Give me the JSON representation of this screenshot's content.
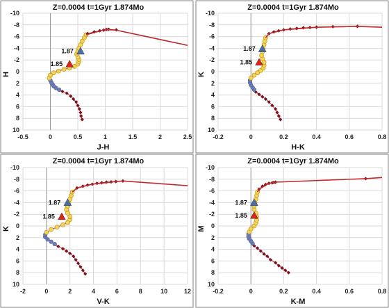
{
  "colors": {
    "isochrone_line": "#c0282a",
    "isochrone_marker": "#7a1220",
    "yellow_marker_fill": "#f3d55a",
    "yellow_marker_edge": "#c89a1c",
    "blue_marker": "#6f7fb8",
    "triangle_blue": "#4a6ea8",
    "triangle_red": "#d7261e",
    "grid": "#d9d9d9",
    "frame": "#7f7f7f"
  },
  "chart_data": [
    {
      "type": "line",
      "title": "Z=0.0004  t=1Gyr  1.874Mo",
      "xlabel": "J-H",
      "ylabel": "H",
      "xlim": [
        -0.5,
        2.5
      ],
      "ylim": [
        10,
        -10
      ],
      "x_ticks": [
        "-0.5",
        "0",
        "0.5",
        "1",
        "1.5",
        "2",
        "2.5"
      ],
      "y_ticks": [
        "-10",
        "-8",
        "-6",
        "-4",
        "-2",
        "0",
        "2",
        "4",
        "6",
        "8",
        "10"
      ],
      "grid": true,
      "series": [
        {
          "marker": "dark-red-diamond",
          "points": [
            [
              0.58,
              8.2
            ],
            [
              0.56,
              7.6
            ],
            [
              0.55,
              7.0
            ],
            [
              0.53,
              6.4
            ],
            [
              0.5,
              5.8
            ],
            [
              0.47,
              5.2
            ],
            [
              0.42,
              4.7
            ],
            [
              0.37,
              4.2
            ],
            [
              0.3,
              3.7
            ],
            [
              0.22,
              3.4
            ]
          ]
        },
        {
          "marker": "blue-circle",
          "points": [
            [
              0.16,
              3.1
            ],
            [
              0.1,
              2.8
            ],
            [
              0.06,
              2.5
            ],
            [
              0.04,
              2.2
            ],
            [
              0.02,
              1.9
            ],
            [
              0.0,
              1.5
            ]
          ]
        },
        {
          "marker": "yellow-circle",
          "points": [
            [
              -0.02,
              1.1
            ],
            [
              0.0,
              0.6
            ],
            [
              0.06,
              0.2
            ],
            [
              0.15,
              -0.1
            ],
            [
              0.25,
              -0.4
            ],
            [
              0.35,
              -0.6
            ],
            [
              0.44,
              -0.9
            ],
            [
              0.5,
              -1.3
            ],
            [
              0.52,
              -1.7
            ],
            [
              0.52,
              -2.1
            ],
            [
              0.5,
              -2.5
            ],
            [
              0.48,
              -3.0
            ],
            [
              0.5,
              -3.5
            ],
            [
              0.52,
              -4.0
            ],
            [
              0.55,
              -4.6
            ],
            [
              0.58,
              -5.2
            ],
            [
              0.62,
              -5.8
            ],
            [
              0.65,
              -6.3
            ]
          ]
        },
        {
          "marker": "dark-red-diamond",
          "points": [
            [
              0.68,
              -6.5
            ],
            [
              0.8,
              -6.8
            ],
            [
              0.9,
              -7.0
            ],
            [
              0.97,
              -7.1
            ],
            [
              1.02,
              -7.2
            ],
            [
              1.06,
              -7.25
            ],
            [
              1.2,
              -7.15
            ]
          ]
        },
        {
          "marker": "none",
          "points": [
            [
              0.65,
              -6.3
            ],
            [
              1.0,
              -7.2
            ],
            [
              1.2,
              -7.1
            ],
            [
              1.6,
              -6.3
            ],
            [
              2.0,
              -5.5
            ],
            [
              2.5,
              -4.5
            ]
          ]
        }
      ],
      "markers": [
        {
          "label": "1.87",
          "shape": "blue-triangle",
          "x": 0.55,
          "y": -3.5
        },
        {
          "label": "1.85",
          "shape": "red-triangle",
          "x": 0.35,
          "y": -1.3
        }
      ]
    },
    {
      "type": "line",
      "title": "Z=0.0004  t=1Gyr  1.874Mo",
      "xlabel": "H-K",
      "ylabel": "K",
      "xlim": [
        -0.2,
        0.8
      ],
      "ylim": [
        10,
        -10
      ],
      "x_ticks": [
        "-0.2",
        "0",
        "0.2",
        "0.4",
        "0.6",
        "0.8"
      ],
      "y_ticks": [
        "-10",
        "-8",
        "-6",
        "-4",
        "-2",
        "0",
        "2",
        "4",
        "6",
        "8",
        "10"
      ],
      "grid": true,
      "series": [
        {
          "marker": "dark-red-diamond",
          "points": [
            [
              0.18,
              8.2
            ],
            [
              0.17,
              7.6
            ],
            [
              0.16,
              7.0
            ],
            [
              0.15,
              6.4
            ],
            [
              0.13,
              5.8
            ],
            [
              0.11,
              5.2
            ],
            [
              0.09,
              4.7
            ],
            [
              0.07,
              4.3
            ],
            [
              0.05,
              3.9
            ],
            [
              0.03,
              3.5
            ]
          ]
        },
        {
          "marker": "blue-circle",
          "points": [
            [
              0.02,
              3.1
            ],
            [
              0.01,
              2.7
            ],
            [
              0.0,
              2.3
            ],
            [
              -0.005,
              1.9
            ],
            [
              -0.005,
              1.5
            ]
          ]
        },
        {
          "marker": "yellow-circle",
          "points": [
            [
              0.0,
              1.1
            ],
            [
              0.02,
              0.6
            ],
            [
              0.04,
              0.2
            ],
            [
              0.06,
              -0.2
            ],
            [
              0.075,
              -0.6
            ],
            [
              0.08,
              -1.1
            ],
            [
              0.08,
              -1.6
            ],
            [
              0.07,
              -2.2
            ],
            [
              0.065,
              -2.8
            ],
            [
              0.07,
              -3.4
            ],
            [
              0.075,
              -4.0
            ],
            [
              0.08,
              -4.6
            ],
            [
              0.085,
              -5.2
            ],
            [
              0.09,
              -5.8
            ]
          ]
        },
        {
          "marker": "dark-red-diamond",
          "points": [
            [
              0.11,
              -6.5
            ],
            [
              0.14,
              -6.8
            ],
            [
              0.17,
              -7.0
            ],
            [
              0.2,
              -7.15
            ],
            [
              0.24,
              -7.3
            ],
            [
              0.28,
              -7.4
            ],
            [
              0.32,
              -7.5
            ],
            [
              0.36,
              -7.55
            ],
            [
              0.4,
              -7.6
            ],
            [
              0.5,
              -7.7
            ],
            [
              0.65,
              -7.75
            ]
          ]
        },
        {
          "marker": "none",
          "points": [
            [
              0.09,
              -5.8
            ],
            [
              0.11,
              -6.5
            ],
            [
              0.2,
              -7.15
            ],
            [
              0.4,
              -7.6
            ],
            [
              0.65,
              -7.75
            ],
            [
              0.8,
              -7.6
            ]
          ]
        }
      ],
      "markers": [
        {
          "label": "1.87",
          "shape": "blue-triangle",
          "x": 0.07,
          "y": -3.9
        },
        {
          "label": "1.85",
          "shape": "red-triangle",
          "x": 0.05,
          "y": -1.6
        }
      ]
    },
    {
      "type": "line",
      "title": "Z=0.0004  t=1Gyr  1.874Mo",
      "xlabel": "V-K",
      "ylabel": "K",
      "xlim": [
        -2,
        12
      ],
      "ylim": [
        10,
        -10
      ],
      "x_ticks": [
        "-2",
        "0",
        "2",
        "4",
        "6",
        "8",
        "10",
        "12"
      ],
      "y_ticks": [
        "-10",
        "-8",
        "-6",
        "-4",
        "-2",
        "0",
        "2",
        "4",
        "6",
        "8",
        "10"
      ],
      "grid": true,
      "series": [
        {
          "marker": "dark-red-diamond",
          "points": [
            [
              3.3,
              8.2
            ],
            [
              3.1,
              7.6
            ],
            [
              2.9,
              7.0
            ],
            [
              2.7,
              6.4
            ],
            [
              2.5,
              5.8
            ],
            [
              2.3,
              5.2
            ],
            [
              2.0,
              4.7
            ],
            [
              1.7,
              4.3
            ],
            [
              1.4,
              3.9
            ],
            [
              1.0,
              3.5
            ]
          ]
        },
        {
          "marker": "blue-circle",
          "points": [
            [
              0.7,
              3.1
            ],
            [
              0.4,
              2.7
            ],
            [
              0.1,
              2.3
            ],
            [
              -0.1,
              1.9
            ],
            [
              -0.1,
              1.5
            ]
          ]
        },
        {
          "marker": "yellow-circle",
          "points": [
            [
              0.0,
              1.1
            ],
            [
              0.4,
              0.6
            ],
            [
              0.9,
              0.2
            ],
            [
              1.4,
              -0.2
            ],
            [
              1.8,
              -0.6
            ],
            [
              2.0,
              -1.1
            ],
            [
              2.0,
              -1.6
            ],
            [
              1.8,
              -2.2
            ],
            [
              1.7,
              -2.8
            ],
            [
              1.8,
              -3.4
            ],
            [
              1.9,
              -4.0
            ],
            [
              2.0,
              -4.6
            ],
            [
              2.1,
              -5.2
            ],
            [
              2.2,
              -5.8
            ]
          ]
        },
        {
          "marker": "dark-red-diamond",
          "points": [
            [
              2.6,
              -6.5
            ],
            [
              3.1,
              -6.8
            ],
            [
              3.5,
              -7.0
            ],
            [
              3.9,
              -7.15
            ],
            [
              4.3,
              -7.3
            ],
            [
              4.7,
              -7.4
            ],
            [
              5.1,
              -7.5
            ],
            [
              5.5,
              -7.55
            ],
            [
              5.9,
              -7.6
            ],
            [
              6.5,
              -7.7
            ]
          ]
        },
        {
          "marker": "none",
          "points": [
            [
              2.2,
              -5.8
            ],
            [
              2.6,
              -6.5
            ],
            [
              3.9,
              -7.15
            ],
            [
              5.9,
              -7.6
            ],
            [
              6.5,
              -7.7
            ],
            [
              12,
              -6.9
            ]
          ]
        }
      ],
      "markers": [
        {
          "label": "1.87",
          "shape": "blue-triangle",
          "x": 1.8,
          "y": -4.0
        },
        {
          "label": "1.85",
          "shape": "red-triangle",
          "x": 1.3,
          "y": -1.6
        }
      ]
    },
    {
      "type": "line",
      "title": "Z=0.0004  t=1Gyr  1.874Mo",
      "xlabel": "K-M",
      "ylabel": "M",
      "xlim": [
        -0.2,
        0.8
      ],
      "ylim": [
        10,
        -10
      ],
      "x_ticks": [
        "-0.2",
        "0",
        "0.2",
        "0.4",
        "0.6",
        "0.8"
      ],
      "y_ticks": [
        "-10",
        "-8",
        "-6",
        "-4",
        "-2",
        "0",
        "2",
        "4",
        "6",
        "8",
        "10"
      ],
      "grid": true,
      "series": [
        {
          "marker": "dark-red-diamond",
          "points": [
            [
              0.23,
              8.0
            ],
            [
              0.21,
              7.6
            ],
            [
              0.19,
              7.2
            ],
            [
              0.17,
              6.8
            ],
            [
              0.15,
              6.3
            ],
            [
              0.12,
              5.8
            ],
            [
              0.1,
              5.2
            ],
            [
              0.08,
              4.8
            ],
            [
              0.06,
              4.3
            ],
            [
              0.04,
              3.8
            ],
            [
              0.02,
              3.4
            ]
          ]
        },
        {
          "marker": "blue-circle",
          "points": [
            [
              0.01,
              3.0
            ],
            [
              0.0,
              2.6
            ],
            [
              -0.01,
              2.2
            ],
            [
              -0.015,
              1.8
            ],
            [
              -0.015,
              1.4
            ]
          ]
        },
        {
          "marker": "yellow-circle",
          "points": [
            [
              -0.01,
              1.0
            ],
            [
              0.0,
              0.5
            ],
            [
              0.02,
              0.0
            ],
            [
              0.03,
              -0.5
            ],
            [
              0.035,
              -1.0
            ],
            [
              0.035,
              -1.6
            ],
            [
              0.03,
              -2.2
            ],
            [
              0.02,
              -2.8
            ],
            [
              0.02,
              -3.4
            ],
            [
              0.025,
              -4.0
            ],
            [
              0.03,
              -4.6
            ],
            [
              0.035,
              -5.2
            ],
            [
              0.04,
              -5.8
            ]
          ]
        },
        {
          "marker": "dark-red-diamond",
          "points": [
            [
              0.05,
              -6.3
            ],
            [
              0.07,
              -6.8
            ],
            [
              0.09,
              -7.1
            ],
            [
              0.11,
              -7.3
            ],
            [
              0.13,
              -7.4
            ],
            [
              0.14,
              -7.45
            ],
            [
              0.15,
              -7.5
            ],
            [
              0.7,
              -8.1
            ]
          ]
        },
        {
          "marker": "none",
          "points": [
            [
              0.04,
              -5.8
            ],
            [
              0.05,
              -6.3
            ],
            [
              0.11,
              -7.3
            ],
            [
              0.15,
              -7.5
            ],
            [
              0.7,
              -8.1
            ],
            [
              0.8,
              -8.3
            ]
          ]
        }
      ],
      "markers": [
        {
          "label": "1.87",
          "shape": "blue-triangle",
          "x": 0.02,
          "y": -4.0
        },
        {
          "label": "1.85",
          "shape": "red-triangle",
          "x": 0.02,
          "y": -1.8
        }
      ]
    }
  ]
}
